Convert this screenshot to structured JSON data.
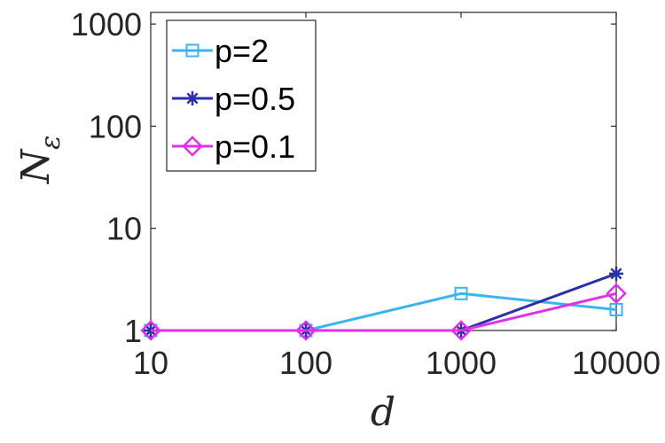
{
  "chart_data": {
    "type": "line",
    "xscale": "log",
    "yscale": "log",
    "x": [
      10,
      100,
      1000,
      10000
    ],
    "xlim": [
      10,
      10000
    ],
    "ylim": [
      1,
      1300
    ],
    "xticks": [
      "10",
      "100",
      "1000",
      "10000"
    ],
    "yticks": [
      "1",
      "10",
      "100",
      "1000"
    ],
    "xlabel": "d",
    "ylabel": "N",
    "ylabel_subscript": "ε",
    "grid": false,
    "legend_position": "top-left",
    "series": [
      {
        "name": "p=2",
        "values": [
          1,
          1,
          2.3,
          1.6
        ],
        "color": "#3cb4f0",
        "marker": "square"
      },
      {
        "name": "p=0.5",
        "values": [
          1,
          1,
          1,
          3.6
        ],
        "color": "#2b2fa8",
        "marker": "asterisk"
      },
      {
        "name": "p=0.1",
        "values": [
          1,
          1,
          1,
          2.3
        ],
        "color": "#e030e8",
        "marker": "diamond"
      }
    ]
  }
}
